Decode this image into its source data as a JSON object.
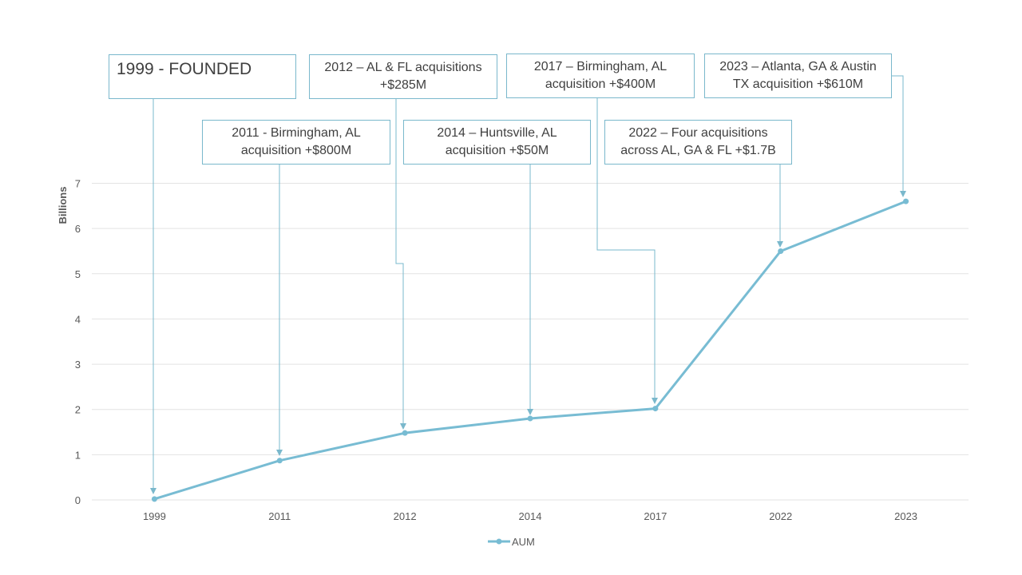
{
  "colors": {
    "line": "#78bcd3",
    "grid": "#e3e3e3",
    "connector": "#7ab8cc",
    "text": "#595959"
  },
  "chart_data": {
    "type": "line",
    "categories": [
      "1999",
      "2011",
      "2012",
      "2014",
      "2017",
      "2022",
      "2023"
    ],
    "series": [
      {
        "name": "AUM",
        "values": [
          0.02,
          0.87,
          1.48,
          1.8,
          2.02,
          5.5,
          6.6
        ]
      }
    ],
    "ylabel": "Billions",
    "ylim": [
      0,
      7
    ],
    "yticks": [
      "0",
      "1",
      "2",
      "3",
      "4",
      "5",
      "6",
      "7"
    ],
    "grid": true,
    "legend": "bottom",
    "annotations": [
      {
        "text": "1999 - FOUNDED",
        "category": "1999"
      },
      {
        "text": "2011 - Birmingham, AL acquisition +$800M",
        "category": "2011"
      },
      {
        "text": "2012 – AL & FL acquisitions +$285M",
        "category": "2012"
      },
      {
        "text": "2014 – Huntsville, AL acquisition +$50M",
        "category": "2014"
      },
      {
        "text": "2017 – Birmingham, AL acquisition +$400M",
        "category": "2017"
      },
      {
        "text": "2022 – Four acquisitions across AL, GA & FL +$1.7B",
        "category": "2022"
      },
      {
        "text": "2023 – Atlanta, GA & Austin TX acquisition +$610M",
        "category": "2023"
      }
    ]
  }
}
